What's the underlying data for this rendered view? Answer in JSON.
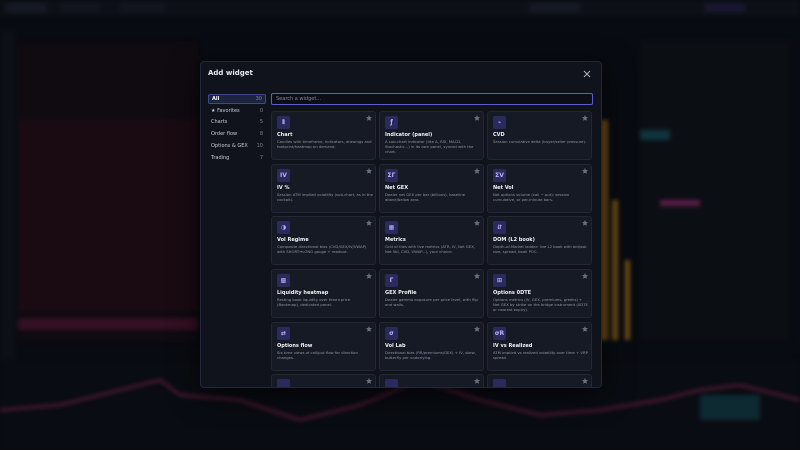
{
  "dialog": {
    "title": "Add widget",
    "search_placeholder": "Search a widget...",
    "sidebar": [
      {
        "label": "All",
        "count": "30"
      },
      {
        "label": "★ Favorites",
        "count": "0"
      },
      {
        "label": "Charts",
        "count": "5"
      },
      {
        "label": "Order flow",
        "count": "8"
      },
      {
        "label": "Options & GEX",
        "count": "10"
      },
      {
        "label": "Trading",
        "count": "7"
      }
    ],
    "widgets": [
      {
        "icon": "⫴",
        "name": "Chart",
        "description": "Candles with timeframe, indicators, drawings and footprint/heatmap on demand."
      },
      {
        "icon": "ƒ",
        "name": "Indicator (panel)",
        "description": "A sub-chart indicator (like Δ, RSI, MACD, Stochastic...) in its own panel, synced with the chart."
      },
      {
        "icon": "⌁",
        "name": "CVD",
        "description": "Session cumulative delta (buyer/seller pressure)."
      },
      {
        "icon": "IV",
        "name": "IV %",
        "description": "Session ATM implied volatility (sub-chart, as in the cockpit)."
      },
      {
        "icon": "ΣΓ",
        "name": "Net GEX",
        "description": "Dealer net GEX per bar (billions), baseline above/below zero."
      },
      {
        "icon": "ΣV",
        "name": "Net Vol",
        "description": "Net options volume (call − put): session cumulative, or per-minute bars."
      },
      {
        "icon": "◑",
        "name": "Vol Regime",
        "description": "Composite directional bias (CVD/GEX/IV/VWAP) with SHORT↔LONG gauge + readout."
      },
      {
        "icon": "▦",
        "name": "Metrics",
        "description": "Grid of tiles with live metrics (ATR, IV, Net GEX, Net Vol, CVD, VWAP...), your choice."
      },
      {
        "icon": "⇵",
        "name": "DOM (L2 book)",
        "description": "Depth-of-Market ladder: live L2 book with bid/ask size, spread, book POC."
      },
      {
        "icon": "▩",
        "name": "Liquidity heatmap",
        "description": "Resting book liquidity over time×price (Bookmap), dedicated panel."
      },
      {
        "icon": "Γ",
        "name": "GEX Profile",
        "description": "Dealer gamma exposure per price level, with flip and walls."
      },
      {
        "icon": "⊞",
        "name": "Options 0DTE",
        "description": "Options metrics (IV, GEX, premiums, greeks) + Net GEX by strike on the bridge instrument (0DTE or nearest expiry)."
      },
      {
        "icon": "⇄",
        "name": "Options flow",
        "description": "Six time views of call/put flow for direction changes."
      },
      {
        "icon": "σ",
        "name": "Vol Lab",
        "description": "Directional bias (RR/premiums/GEX) + IV, skew, butterfly per underlying."
      },
      {
        "icon": "σR",
        "name": "IV vs Realized",
        "description": "ATM implied vs realized volatility over time + VRP spread."
      }
    ]
  }
}
